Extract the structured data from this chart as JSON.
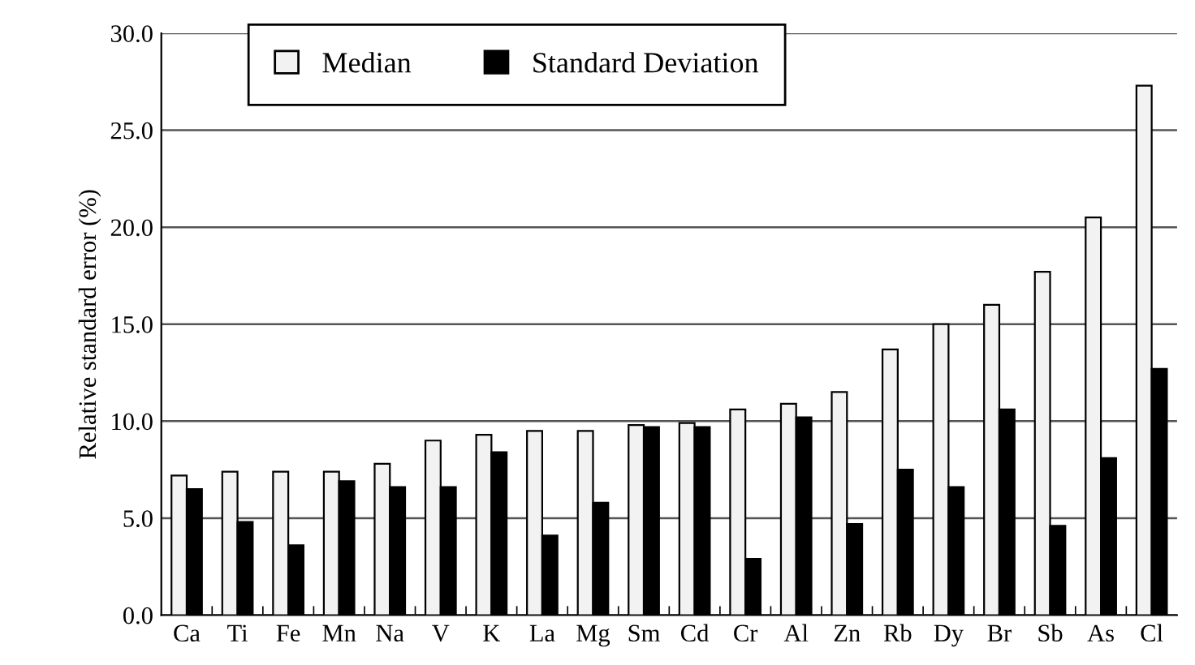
{
  "chart_data": {
    "type": "bar",
    "ylabel": "Relative standard error (%)",
    "categories": [
      "Ca",
      "Ti",
      "Fe",
      "Mn",
      "Na",
      "V",
      "K",
      "La",
      "Mg",
      "Sm",
      "Cd",
      "Cr",
      "Al",
      "Zn",
      "Rb",
      "Dy",
      "Br",
      "Sb",
      "As",
      "Cl"
    ],
    "series": [
      {
        "name": "Median",
        "color": "#f2f2f2",
        "values": [
          7.2,
          7.4,
          7.4,
          7.4,
          7.8,
          9.0,
          9.3,
          9.5,
          9.5,
          9.8,
          9.9,
          10.6,
          10.9,
          11.5,
          13.7,
          15.0,
          16.0,
          17.7,
          20.5,
          27.3
        ]
      },
      {
        "name": "Standard Deviation",
        "color": "#000000",
        "values": [
          6.5,
          4.8,
          3.6,
          6.9,
          6.6,
          6.6,
          8.4,
          4.1,
          5.8,
          9.7,
          9.7,
          2.9,
          10.2,
          4.7,
          7.5,
          6.6,
          10.6,
          4.6,
          8.1,
          12.7
        ]
      }
    ],
    "ylim": [
      0,
      30
    ],
    "yticks": [
      {
        "value": 0,
        "label": "0.0"
      },
      {
        "value": 5,
        "label": "5.0"
      },
      {
        "value": 10,
        "label": "10.0"
      },
      {
        "value": 15,
        "label": "15.0"
      },
      {
        "value": 20,
        "label": "20.0"
      },
      {
        "value": 25,
        "label": "25.0"
      },
      {
        "value": 30,
        "label": "30.0"
      }
    ],
    "grid": "y",
    "legend": "top"
  }
}
